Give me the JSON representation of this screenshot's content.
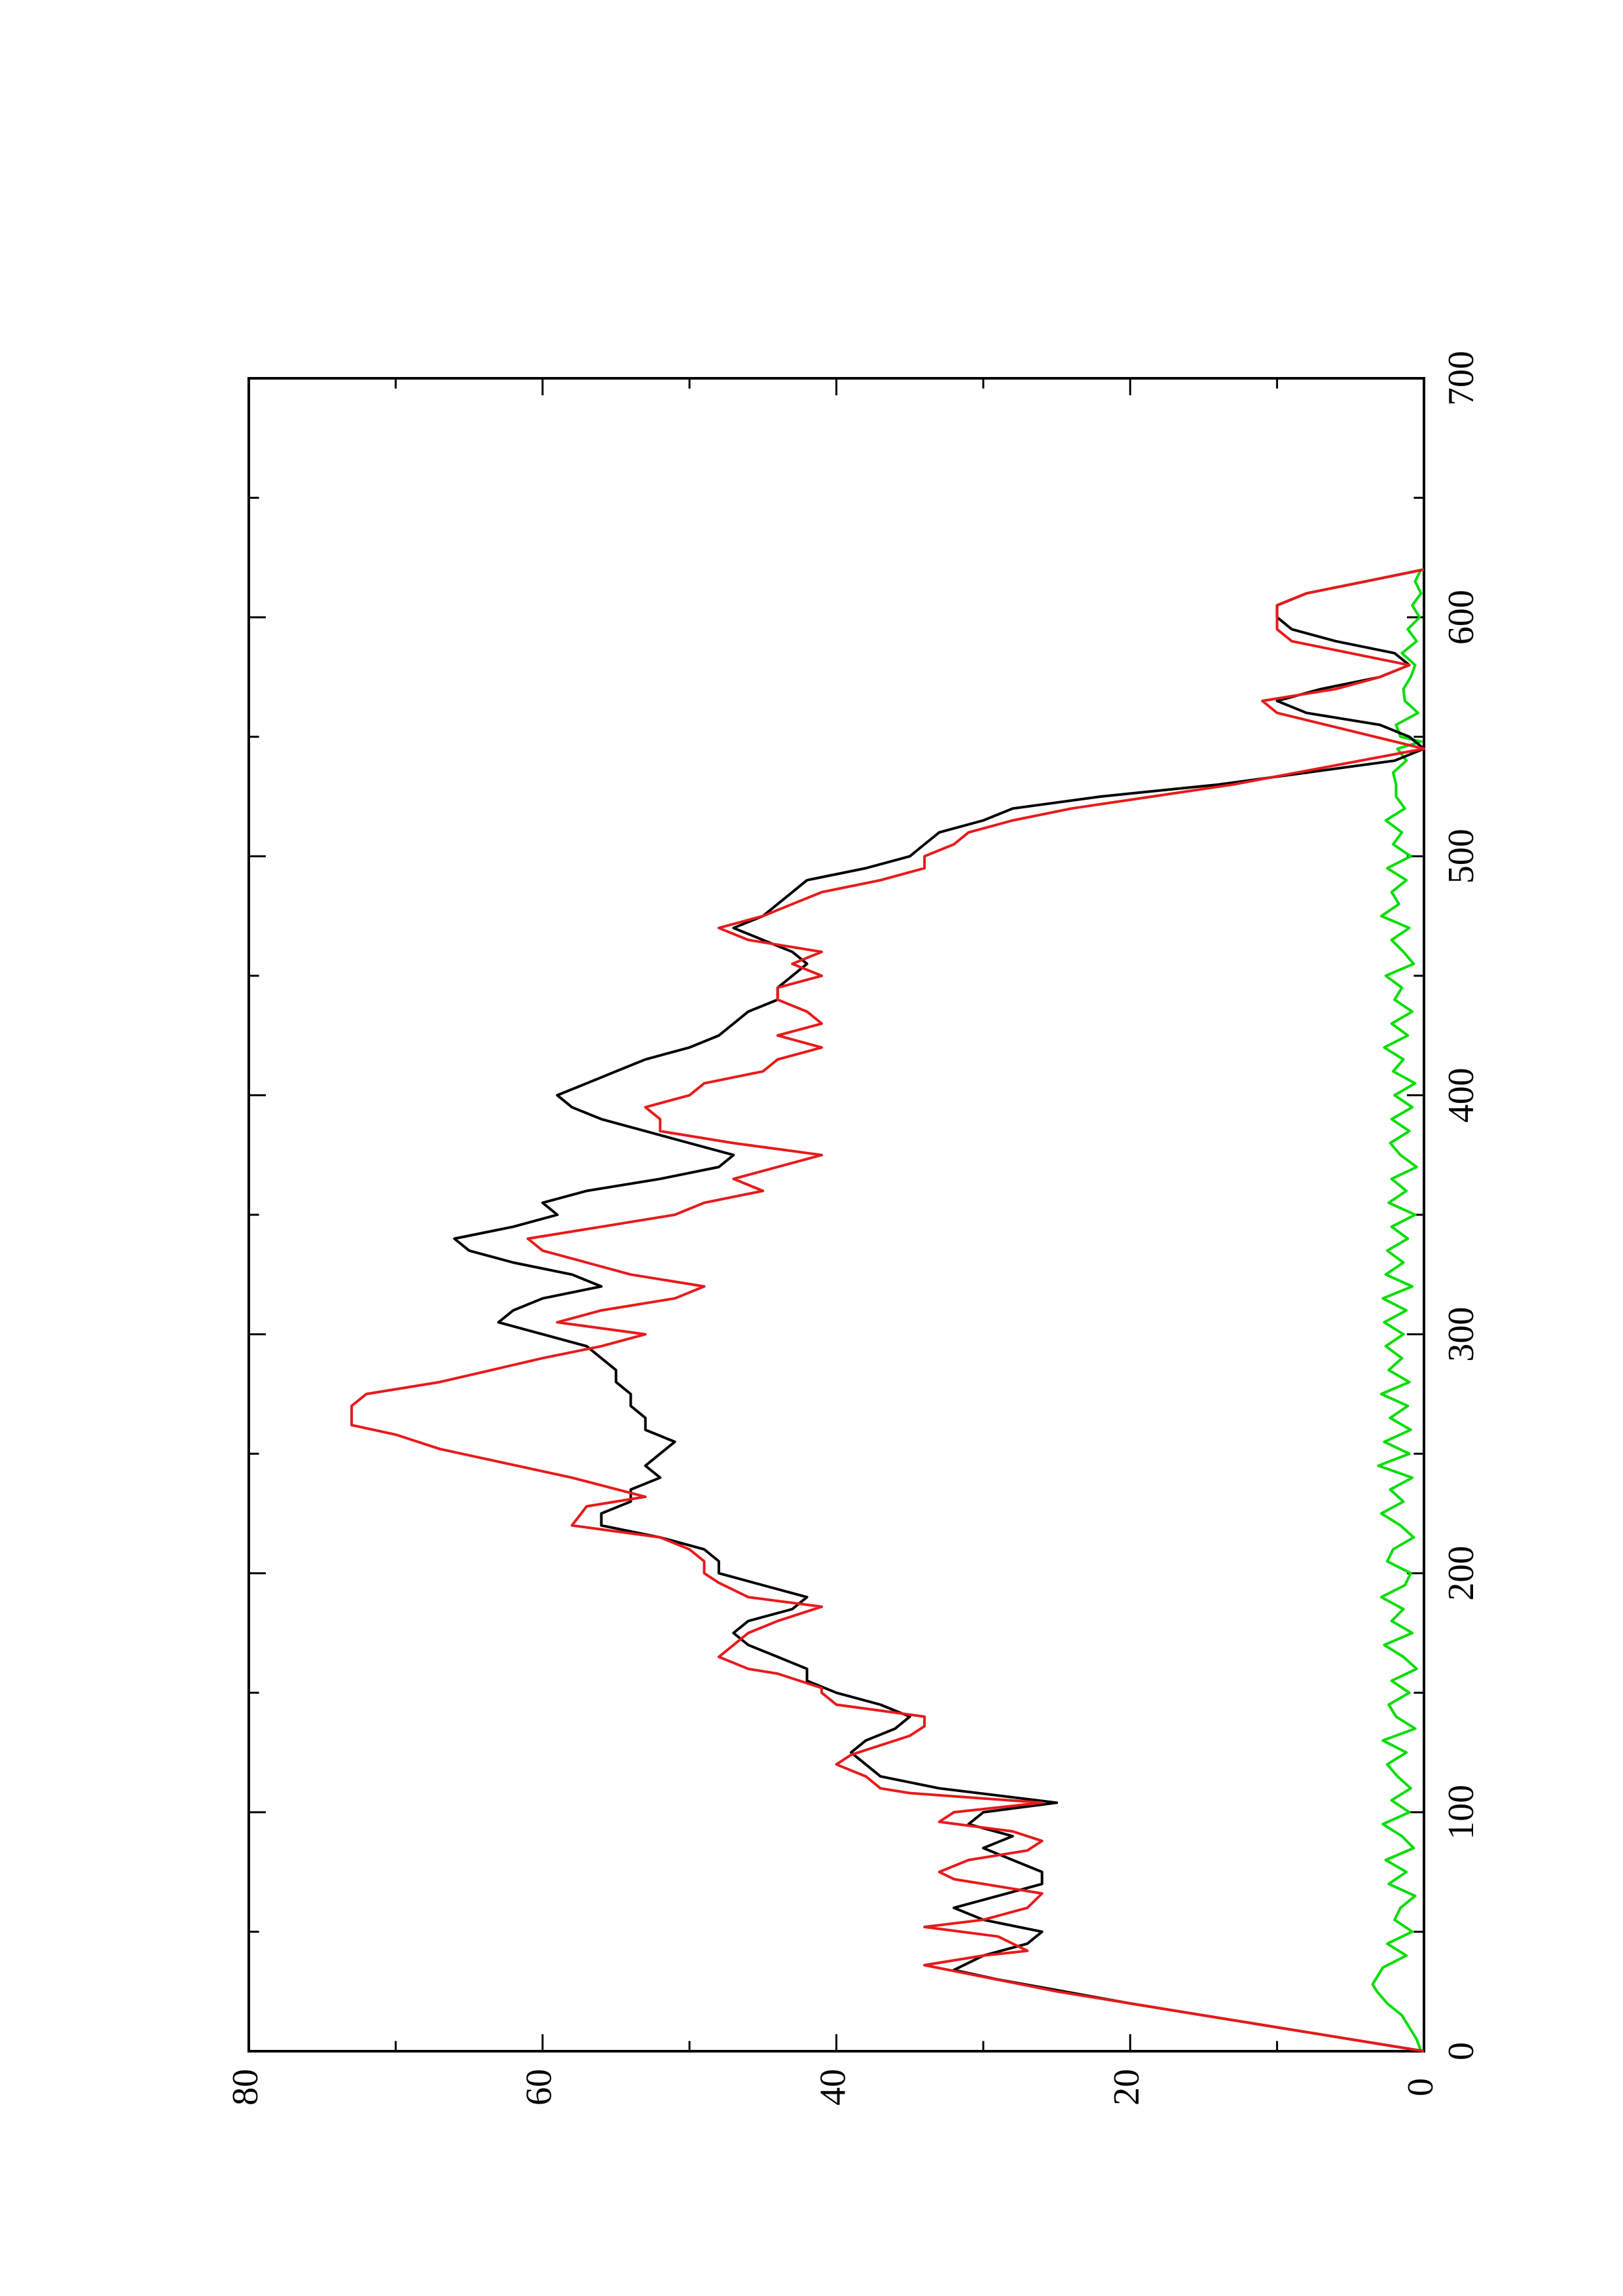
{
  "chart_data": {
    "type": "line",
    "title": "",
    "xlabel": "",
    "ylabel": "",
    "orientation": "rotated-90-counterclockwise",
    "grid": false,
    "legend": "none",
    "xlim": [
      0,
      700
    ],
    "ylim": [
      0,
      80
    ],
    "x_ticks": [
      "0",
      "100",
      "200",
      "300",
      "400",
      "500",
      "600",
      "700"
    ],
    "y_ticks": [
      "0",
      "20",
      "40",
      "60",
      "80"
    ],
    "series": [
      {
        "color": "#000000",
        "x": [
          0,
          10,
          20,
          30,
          34,
          40,
          45,
          50,
          55,
          60,
          65,
          70,
          75,
          80,
          85,
          90,
          95,
          100,
          104,
          110,
          115,
          120,
          125,
          130,
          135,
          140,
          145,
          150,
          155,
          160,
          165,
          170,
          175,
          180,
          185,
          190,
          195,
          200,
          205,
          210,
          215,
          220,
          225,
          230,
          235,
          240,
          245,
          250,
          255,
          260,
          265,
          270,
          275,
          280,
          285,
          290,
          295,
          300,
          305,
          310,
          315,
          320,
          325,
          330,
          335,
          340,
          345,
          350,
          355,
          360,
          365,
          370,
          375,
          380,
          385,
          390,
          395,
          400,
          405,
          410,
          415,
          420,
          425,
          430,
          435,
          440,
          445,
          450,
          455,
          460,
          465,
          470,
          475,
          480,
          485,
          490,
          495,
          500,
          505,
          510,
          515,
          520,
          525,
          530,
          535,
          540,
          545,
          550,
          555,
          560,
          565,
          570,
          575,
          580,
          585,
          590,
          595,
          600,
          605,
          610,
          615,
          620
        ],
        "y": [
          0,
          10,
          20,
          29,
          32,
          30,
          27,
          26,
          30,
          32,
          29,
          26,
          26,
          28,
          30,
          28,
          31,
          30,
          25,
          33,
          37,
          38,
          39,
          38,
          36,
          35,
          37,
          40,
          42,
          42,
          44,
          46,
          47,
          46,
          43,
          42,
          45,
          48,
          48,
          49,
          52,
          56,
          56,
          54,
          54,
          52,
          53,
          52,
          51,
          53,
          53,
          54,
          54,
          55,
          55,
          56,
          57,
          60,
          63,
          62,
          60,
          56,
          58,
          62,
          65,
          66,
          62,
          59,
          60,
          57,
          52,
          48,
          47,
          50,
          53,
          56,
          58,
          59,
          57,
          55,
          53,
          50,
          48,
          47,
          46,
          44,
          44,
          43,
          42,
          43,
          45,
          47,
          45,
          44,
          43,
          42,
          38,
          35,
          34,
          33,
          30,
          28,
          22,
          14,
          8,
          2,
          0,
          1,
          3,
          8,
          10,
          7,
          3,
          1,
          2,
          6,
          9,
          10,
          10,
          8,
          4,
          0
        ]
      },
      {
        "color": "#e8191b",
        "x": [
          0,
          5,
          15,
          25,
          36,
          40,
          42,
          48,
          52,
          55,
          60,
          66,
          70,
          72,
          75,
          80,
          84,
          88,
          92,
          96,
          100,
          104,
          108,
          110,
          115,
          120,
          124,
          128,
          132,
          136,
          140,
          145,
          150,
          152,
          158,
          160,
          165,
          170,
          175,
          180,
          184,
          186,
          190,
          196,
          200,
          205,
          210,
          215,
          220,
          228,
          232,
          240,
          248,
          252,
          258,
          262,
          266,
          270,
          275,
          280,
          290,
          295,
          300,
          305,
          310,
          315,
          320,
          325,
          330,
          335,
          340,
          345,
          350,
          355,
          360,
          365,
          375,
          380,
          385,
          390,
          395,
          400,
          405,
          410,
          415,
          420,
          425,
          430,
          435,
          440,
          445,
          450,
          455,
          460,
          465,
          470,
          475,
          480,
          485,
          490,
          495,
          500,
          505,
          510,
          515,
          520,
          530,
          545,
          560,
          565,
          570,
          575,
          580,
          585,
          590,
          595,
          600,
          605,
          610,
          615,
          620
        ],
        "y": [
          0,
          5,
          15,
          25,
          34,
          30,
          27,
          29,
          34,
          30,
          27,
          26,
          30,
          32,
          33,
          31,
          27,
          26,
          28,
          33,
          32,
          26,
          35,
          37,
          38,
          40,
          39,
          37,
          35,
          34,
          34,
          40,
          41,
          41,
          44,
          46,
          48,
          47,
          46,
          44,
          42,
          41,
          46,
          48,
          49,
          49,
          50,
          52,
          58,
          57,
          53,
          58,
          64,
          67,
          70,
          73,
          73,
          73,
          72,
          67,
          60,
          56,
          53,
          59,
          56,
          51,
          49,
          54,
          57,
          60,
          61,
          56,
          51,
          49,
          45,
          47,
          41,
          47,
          52,
          52,
          53,
          50,
          49,
          45,
          44,
          41,
          44,
          41,
          42,
          44,
          44,
          41,
          43,
          41,
          46,
          48,
          45,
          43,
          41,
          37,
          34,
          34,
          32,
          31,
          28,
          24,
          13,
          0,
          10,
          11,
          6,
          3,
          1,
          5,
          9,
          10,
          10,
          10,
          8,
          4,
          0
        ]
      },
      {
        "color": "#00dd00",
        "x": [
          0,
          5,
          10,
          15,
          20,
          25,
          28,
          35,
          40,
          45,
          50,
          55,
          60,
          65,
          70,
          75,
          80,
          85,
          90,
          95,
          100,
          105,
          110,
          115,
          120,
          125,
          130,
          135,
          140,
          145,
          150,
          155,
          160,
          165,
          170,
          175,
          180,
          185,
          190,
          195,
          200,
          205,
          210,
          215,
          220,
          225,
          230,
          235,
          240,
          245,
          250,
          255,
          260,
          265,
          270,
          275,
          280,
          285,
          290,
          295,
          300,
          305,
          310,
          315,
          320,
          325,
          330,
          335,
          340,
          345,
          350,
          355,
          360,
          365,
          370,
          375,
          380,
          385,
          390,
          395,
          400,
          405,
          410,
          415,
          420,
          425,
          430,
          435,
          440,
          445,
          450,
          455,
          460,
          465,
          470,
          475,
          480,
          485,
          490,
          495,
          500,
          505,
          510,
          515,
          520,
          525,
          530,
          535,
          540,
          545,
          548,
          550,
          555,
          560,
          565,
          570,
          575,
          580,
          585,
          590,
          595,
          600,
          605,
          610,
          615,
          620
        ],
        "y": [
          0.2,
          0.5,
          1,
          1.5,
          2.5,
          3.2,
          3.5,
          2.8,
          1.2,
          2.5,
          0.8,
          2,
          1.6,
          0.6,
          2.4,
          1.2,
          2.6,
          0.7,
          1.5,
          2.8,
          1,
          2.2,
          0.9,
          1.8,
          2.5,
          1.2,
          2.8,
          0.6,
          1.9,
          2.4,
          1,
          2.2,
          0.5,
          1.4,
          2.7,
          0.8,
          2.2,
          1.4,
          2.9,
          1.3,
          0.9,
          2.5,
          2.1,
          0.7,
          1.6,
          2.9,
          1.4,
          2.3,
          0.8,
          3.1,
          1,
          2.7,
          0.9,
          2.3,
          1.1,
          2.9,
          1,
          2.4,
          1.5,
          2.6,
          1.4,
          2.7,
          1.2,
          2.8,
          0.8,
          2.6,
          1.4,
          2.5,
          1.1,
          2.2,
          0.6,
          2.4,
          1.2,
          2.2,
          0.5,
          1.6,
          2.3,
          1,
          2.2,
          0.8,
          2,
          0.6,
          2.1,
          1.4,
          2.7,
          1.1,
          2.2,
          0.8,
          2,
          1.5,
          2.6,
          0.7,
          1.4,
          2.2,
          1,
          2.9,
          1.7,
          2.2,
          1.2,
          2.5,
          0.9,
          2.1,
          1.5,
          2.6,
          1.3,
          1.9,
          1.9,
          2.1,
          1.2,
          1.8,
          0.2,
          1.6,
          1.9,
          0.4,
          1.3,
          1.4,
          0.9,
          0.6,
          1.5,
          0.5,
          1.1,
          0.3,
          0.8,
          0.2,
          0.6,
          0.2
        ]
      }
    ]
  }
}
